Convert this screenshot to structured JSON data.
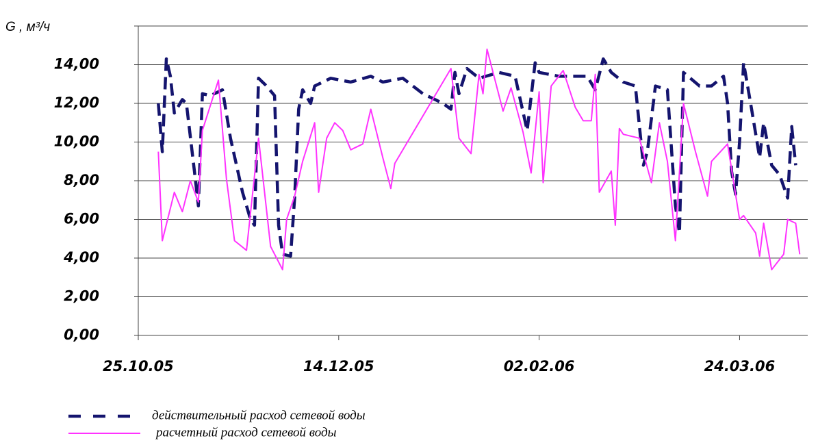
{
  "chart_data": {
    "type": "line",
    "ylabel": "G , м³/ч",
    "xlim": [
      "2005-10-25",
      "2006-04-10"
    ],
    "xticks": [
      {
        "value": "2005-10-25",
        "label": "25.10.05"
      },
      {
        "value": "2005-12-14",
        "label": "14.12.05"
      },
      {
        "value": "2006-02-02",
        "label": "02.02.06"
      },
      {
        "value": "2006-03-24",
        "label": "24.03.06"
      }
    ],
    "ylim": [
      0,
      16
    ],
    "yticks": [
      {
        "value": 0,
        "label": "0,00"
      },
      {
        "value": 2,
        "label": "2,00"
      },
      {
        "value": 4,
        "label": "4,00"
      },
      {
        "value": 6,
        "label": "6,00"
      },
      {
        "value": 8,
        "label": "8,00"
      },
      {
        "value": 10,
        "label": "10,00"
      },
      {
        "value": 12,
        "label": "12,00"
      },
      {
        "value": 14,
        "label": "14,00"
      },
      16
    ],
    "grid": true,
    "series": [
      {
        "name": "действительный расход сетевой воды",
        "color": "#14146e",
        "dashed": true,
        "x": [
          "2005-10-30",
          "2005-10-31",
          "2005-11-01",
          "2005-11-02",
          "2005-11-03",
          "2005-11-05",
          "2005-11-06",
          "2005-11-08",
          "2005-11-09",
          "2005-11-10",
          "2005-11-12",
          "2005-11-15",
          "2005-11-17",
          "2005-11-20",
          "2005-11-22",
          "2005-11-23",
          "2005-11-24",
          "2005-11-26",
          "2005-11-28",
          "2005-11-29",
          "2005-11-30",
          "2005-12-02",
          "2005-12-03",
          "2005-12-04",
          "2005-12-05",
          "2005-12-07",
          "2005-12-08",
          "2005-12-12",
          "2005-12-17",
          "2005-12-22",
          "2005-12-25",
          "2005-12-30",
          "2006-01-04",
          "2006-01-09",
          "2006-01-11",
          "2006-01-12",
          "2006-01-13",
          "2006-01-15",
          "2006-01-18",
          "2006-01-23",
          "2006-01-27",
          "2006-01-30",
          "2006-02-01",
          "2006-02-02",
          "2006-02-07",
          "2006-02-14",
          "2006-02-16",
          "2006-02-18",
          "2006-02-20",
          "2006-02-23",
          "2006-02-26",
          "2006-02-28",
          "2006-03-01",
          "2006-03-03",
          "2006-03-06",
          "2006-03-08",
          "2006-03-09",
          "2006-03-10",
          "2006-03-14",
          "2006-03-17",
          "2006-03-20",
          "2006-03-21",
          "2006-03-22",
          "2006-03-23",
          "2006-03-24",
          "2006-03-25",
          "2006-03-27",
          "2006-03-29",
          "2006-03-30",
          "2006-04-01",
          "2006-04-03",
          "2006-04-05",
          "2006-04-06",
          "2006-04-07"
        ],
        "values": [
          12.0,
          9.5,
          14.3,
          13.4,
          11.5,
          12.2,
          12.0,
          8.5,
          6.7,
          12.5,
          12.4,
          12.7,
          10.2,
          7.4,
          6.0,
          5.7,
          13.3,
          12.9,
          12.4,
          5.7,
          4.2,
          4.1,
          7.1,
          11.7,
          12.7,
          12.0,
          12.9,
          13.3,
          13.1,
          13.4,
          13.1,
          13.3,
          12.5,
          12.0,
          11.7,
          13.6,
          12.5,
          13.8,
          13.3,
          13.6,
          13.4,
          10.6,
          14.1,
          13.6,
          13.4,
          13.4,
          12.7,
          14.3,
          13.6,
          13.1,
          12.9,
          8.8,
          9.5,
          12.9,
          12.7,
          6.7,
          5.3,
          13.6,
          12.9,
          12.9,
          13.4,
          12.0,
          8.5,
          7.3,
          10.0,
          14.1,
          11.7,
          9.2,
          11.0,
          8.8,
          8.3,
          7.1,
          10.8,
          8.8
        ]
      },
      {
        "name": "расчетный расход сетевой воды",
        "color": "#ff33ff",
        "dashed": false,
        "x": [
          "2005-10-30",
          "2005-10-31",
          "2005-11-03",
          "2005-11-05",
          "2005-11-07",
          "2005-11-09",
          "2005-11-10",
          "2005-11-14",
          "2005-11-16",
          "2005-11-18",
          "2005-11-21",
          "2005-11-24",
          "2005-11-27",
          "2005-11-30",
          "2005-12-01",
          "2005-12-03",
          "2005-12-05",
          "2005-12-08",
          "2005-12-09",
          "2005-12-11",
          "2005-12-13",
          "2005-12-15",
          "2005-12-17",
          "2005-12-20",
          "2005-12-22",
          "2005-12-25",
          "2005-12-27",
          "2005-12-28",
          "2006-01-11",
          "2006-01-13",
          "2006-01-16",
          "2006-01-18",
          "2006-01-19",
          "2006-01-20",
          "2006-01-24",
          "2006-01-26",
          "2006-01-29",
          "2006-01-31",
          "2006-02-02",
          "2006-02-03",
          "2006-02-05",
          "2006-02-08",
          "2006-02-11",
          "2006-02-13",
          "2006-02-15",
          "2006-02-16",
          "2006-02-17",
          "2006-02-20",
          "2006-02-21",
          "2006-02-22",
          "2006-02-23",
          "2006-02-27",
          "2006-03-02",
          "2006-03-04",
          "2006-03-06",
          "2006-03-08",
          "2006-03-10",
          "2006-03-13",
          "2006-03-16",
          "2006-03-17",
          "2006-03-21",
          "2006-03-24",
          "2006-03-25",
          "2006-03-28",
          "2006-03-29",
          "2006-03-30",
          "2006-04-01",
          "2006-04-04",
          "2006-04-05",
          "2006-04-07",
          "2006-04-08"
        ],
        "values": [
          9.5,
          4.9,
          7.4,
          6.4,
          8.0,
          6.9,
          10.6,
          13.2,
          8.1,
          4.9,
          4.4,
          10.2,
          4.6,
          3.4,
          6.0,
          7.2,
          9.0,
          11.0,
          7.4,
          10.2,
          11.0,
          10.6,
          9.6,
          9.9,
          11.7,
          9.2,
          7.6,
          8.9,
          13.8,
          10.2,
          9.4,
          13.5,
          12.5,
          14.8,
          11.6,
          12.8,
          10.5,
          8.4,
          12.6,
          7.9,
          12.9,
          13.7,
          11.8,
          11.1,
          11.1,
          13.5,
          7.4,
          8.5,
          5.7,
          10.7,
          10.4,
          10.2,
          7.9,
          11.0,
          9.0,
          4.9,
          12.0,
          9.5,
          7.2,
          9.0,
          9.9,
          6.0,
          6.2,
          5.3,
          4.1,
          5.8,
          3.4,
          4.2,
          6.0,
          5.8,
          4.2
        ]
      }
    ]
  }
}
